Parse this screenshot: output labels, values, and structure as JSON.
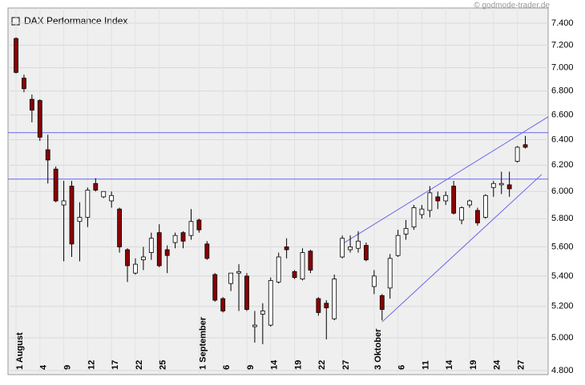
{
  "chart_data": {
    "type": "candlestick",
    "title": "DAX Performance Index",
    "credit": "© godmode-trader.de",
    "log_scale": true,
    "grid": true,
    "ylim": [
      4776,
      7541
    ],
    "yticks": [
      {
        "value": 4800,
        "label": "4.800"
      },
      {
        "value": 5000,
        "label": "5.000"
      },
      {
        "value": 5200,
        "label": "5.200"
      },
      {
        "value": 5400,
        "label": "5.400"
      },
      {
        "value": 5600,
        "label": "5.600"
      },
      {
        "value": 5800,
        "label": "5.800"
      },
      {
        "value": 6000,
        "label": "6.000"
      },
      {
        "value": 6200,
        "label": "6.200"
      },
      {
        "value": 6400,
        "label": "6.400"
      },
      {
        "value": 6600,
        "label": "6.600"
      },
      {
        "value": 6800,
        "label": "6.800"
      },
      {
        "value": 7000,
        "label": "7.000"
      },
      {
        "value": 7200,
        "label": "7.200"
      },
      {
        "value": 7400,
        "label": "7.400"
      }
    ],
    "categories": [
      "1 August",
      null,
      null,
      "4",
      null,
      null,
      "9",
      null,
      null,
      "12",
      null,
      null,
      "17",
      null,
      null,
      "22",
      null,
      null,
      "25",
      null,
      null,
      null,
      null,
      "1 September",
      null,
      null,
      "6",
      null,
      null,
      "9",
      null,
      null,
      "14",
      null,
      null,
      "19",
      null,
      null,
      "22",
      null,
      null,
      "27",
      null,
      null,
      null,
      "3 Oktober",
      null,
      null,
      "6",
      null,
      null,
      "11",
      null,
      null,
      "14",
      null,
      null,
      "19",
      null,
      null,
      "24",
      null,
      null,
      "27",
      null
    ],
    "up_color": "#ffffff",
    "down_color": "#8b0000",
    "open": [
      7260,
      6910,
      6730,
      6720,
      6320,
      6170,
      5900,
      6040,
      5780,
      5810,
      6060,
      5960,
      5930,
      5870,
      5580,
      5420,
      5510,
      5560,
      5700,
      5580,
      5630,
      5700,
      5680,
      5790,
      5620,
      5410,
      5250,
      5350,
      5420,
      5400,
      5070,
      5150,
      5080,
      5360,
      5600,
      5430,
      5380,
      5570,
      5250,
      5220,
      5120,
      5530,
      5580,
      5590,
      5610,
      5330,
      5270,
      5320,
      5540,
      5690,
      5740,
      5830,
      5860,
      5960,
      5930,
      6040,
      5790,
      5900,
      5860,
      5810,
      6030,
      6050,
      6050,
      6230,
      6360
    ],
    "high": [
      7270,
      6940,
      6770,
      6730,
      6440,
      6190,
      6080,
      6080,
      5920,
      6030,
      6100,
      6000,
      6000,
      5880,
      5590,
      5520,
      5600,
      5700,
      5760,
      5610,
      5700,
      5710,
      5870,
      5800,
      5640,
      5420,
      5260,
      5420,
      5480,
      5420,
      5170,
      5220,
      5390,
      5560,
      5660,
      5440,
      5590,
      5580,
      5260,
      5240,
      5410,
      5680,
      5680,
      5710,
      5630,
      5440,
      5280,
      5550,
      5720,
      5790,
      5900,
      5900,
      6040,
      6000,
      6000,
      6080,
      5890,
      5940,
      5880,
      5980,
      6080,
      6150,
      6150,
      6350,
      6430
    ],
    "low": [
      6950,
      6790,
      6540,
      6390,
      6060,
      5920,
      5500,
      5530,
      5500,
      5740,
      6000,
      5950,
      5880,
      5560,
      5360,
      5410,
      5440,
      5510,
      5460,
      5420,
      5590,
      5590,
      5650,
      5700,
      5510,
      5230,
      5160,
      5300,
      5170,
      5170,
      4970,
      4960,
      5070,
      5350,
      5520,
      5380,
      5370,
      5420,
      5140,
      4990,
      5110,
      5520,
      5560,
      5560,
      5500,
      5280,
      5110,
      5250,
      5530,
      5650,
      5720,
      5800,
      5810,
      5870,
      5900,
      5830,
      5760,
      5880,
      5750,
      5800,
      5960,
      5980,
      5960,
      6220,
      6330
    ],
    "close": [
      6960,
      6820,
      6640,
      6420,
      6240,
      5930,
      5930,
      5620,
      5810,
      6010,
      6010,
      6000,
      5970,
      5600,
      5470,
      5480,
      5530,
      5660,
      5470,
      5540,
      5680,
      5640,
      5780,
      5720,
      5520,
      5240,
      5170,
      5420,
      5430,
      5180,
      5080,
      5170,
      5370,
      5530,
      5580,
      5390,
      5560,
      5440,
      5160,
      5190,
      5380,
      5660,
      5600,
      5640,
      5510,
      5400,
      5180,
      5520,
      5680,
      5730,
      5880,
      5870,
      5990,
      5930,
      5970,
      5840,
      5880,
      5930,
      5770,
      5970,
      6060,
      6060,
      6020,
      6340,
      6340
    ],
    "horizontal_lines": [
      6456,
      6093
    ],
    "trend_lines": [
      {
        "x": [
          41,
          64
        ],
        "values": [
          5620,
          6470
        ]
      },
      {
        "x": [
          46,
          64
        ],
        "values": [
          5100,
          6014
        ]
      }
    ],
    "line_color": "#6666ee"
  }
}
